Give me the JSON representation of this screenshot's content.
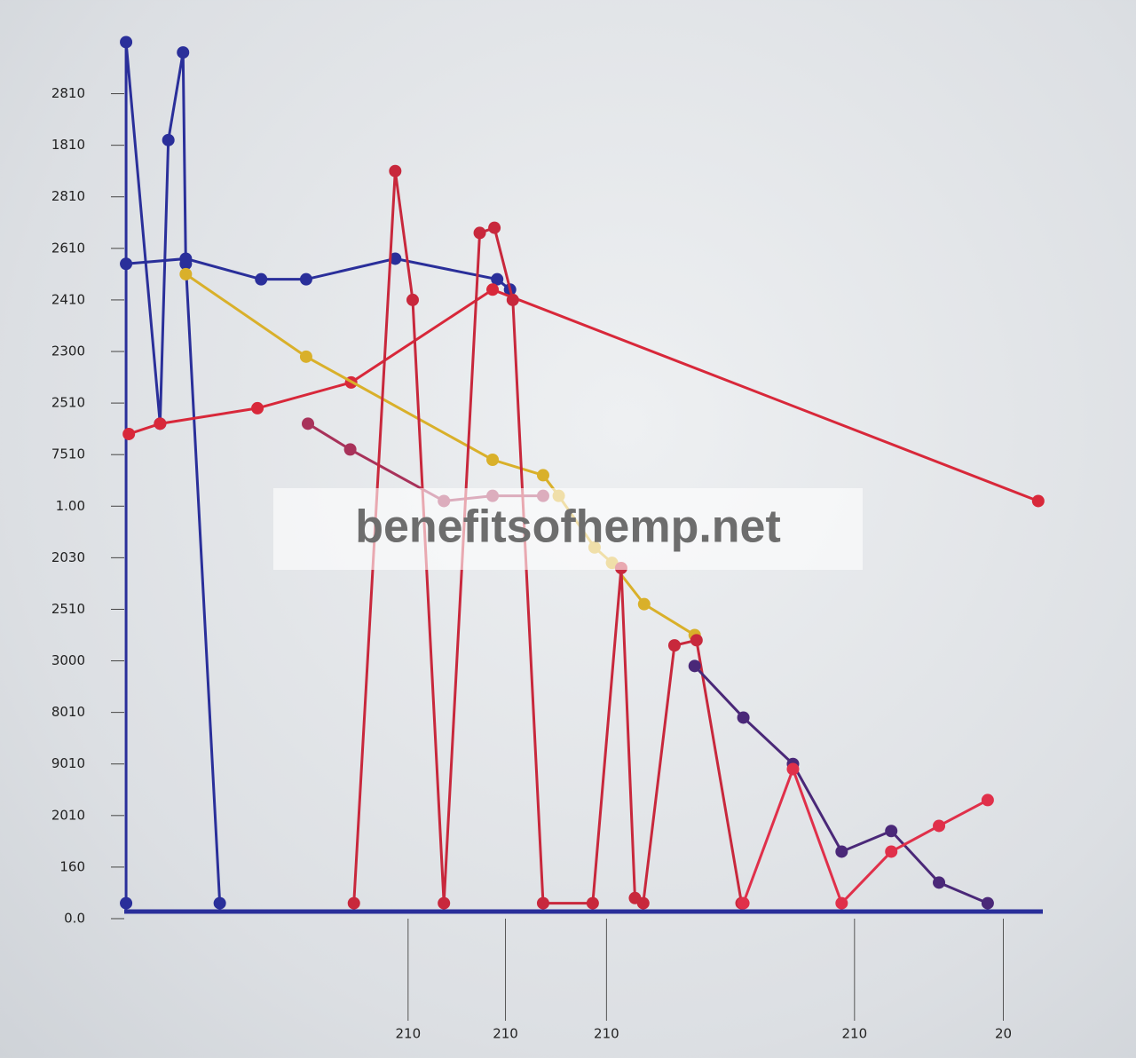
{
  "chart_data": {
    "type": "line",
    "watermark": "benefitsofhemp.net",
    "xlim": [
      0,
      100
    ],
    "ylim": [
      0,
      17.8
    ],
    "yticks": [
      {
        "value": 0,
        "label": "0.0"
      },
      {
        "value": 1,
        "label": "160"
      },
      {
        "value": 2,
        "label": "2010"
      },
      {
        "value": 3,
        "label": "9010"
      },
      {
        "value": 4,
        "label": "8010"
      },
      {
        "value": 5,
        "label": "3000"
      },
      {
        "value": 6,
        "label": "2510"
      },
      {
        "value": 7,
        "label": "2030"
      },
      {
        "value": 8,
        "label": "1.00"
      },
      {
        "value": 9,
        "label": "7510"
      },
      {
        "value": 10,
        "label": "2510"
      },
      {
        "value": 11,
        "label": "2300"
      },
      {
        "value": 12,
        "label": "2410"
      },
      {
        "value": 13,
        "label": "2610"
      },
      {
        "value": 14,
        "label": "2810"
      },
      {
        "value": 15,
        "label": "1810"
      },
      {
        "value": 16,
        "label": "2810"
      }
    ],
    "xticks": [
      {
        "value": 30.9,
        "label": "210"
      },
      {
        "value": 41.5,
        "label": "210"
      },
      {
        "value": 52.5,
        "label": "210"
      },
      {
        "value": 79.5,
        "label": "210"
      },
      {
        "value": 95.7,
        "label": "20"
      }
    ],
    "series": [
      {
        "color": "#2a2f9a",
        "x": [
          0.2,
          0.2,
          3.9,
          4.8,
          6.4,
          6.7,
          10.4
        ],
        "values": [
          0.3,
          17,
          9.6,
          15.1,
          16.8,
          12.7,
          0.3
        ]
      },
      {
        "color": "#2a2f9a",
        "x": [
          0.2,
          6.7,
          14.9,
          19.8,
          29.5,
          40.6,
          42
        ],
        "values": [
          12.7,
          12.8,
          12.4,
          12.4,
          12.8,
          12.4,
          12.2
        ]
      },
      {
        "color": "#d8283a",
        "x": [
          0.5,
          3.9,
          14.5,
          24.7,
          40.1,
          99.5
        ],
        "values": [
          9.4,
          9.6,
          9.9,
          10.4,
          12.2,
          8.1
        ]
      },
      {
        "color": "#d9b02a",
        "x": [
          6.7,
          19.8,
          40.1,
          45.6,
          47.3,
          51.2,
          53.1,
          56.6,
          62.1
        ],
        "values": [
          12.5,
          10.9,
          8.9,
          8.6,
          8.2,
          7.2,
          6.9,
          6.1,
          5.5
        ]
      },
      {
        "color": "#a8325a",
        "x": [
          20,
          24.6,
          34.8,
          40.1,
          45.6
        ],
        "values": [
          9.6,
          9.1,
          8.1,
          8.2,
          8.2
        ]
      },
      {
        "color": "#c8283c",
        "x": [
          25,
          29.5,
          31.4,
          34.8,
          38.7,
          40.3,
          42.3,
          45.6,
          51,
          54.1,
          55.6,
          56.5,
          59.9,
          62.3,
          67.2
        ],
        "values": [
          0.3,
          14.5,
          12,
          0.3,
          13.3,
          13.4,
          12,
          0.3,
          0.3,
          6.8,
          0.4,
          0.3,
          5.3,
          5.4,
          0.3
        ]
      },
      {
        "color": "#4a2878",
        "x": [
          62.1,
          67.4,
          72.8,
          78.1,
          83.5,
          88.7,
          94
        ],
        "values": [
          4.9,
          3.9,
          3.0,
          1.3,
          1.7,
          0.7,
          0.3
        ]
      },
      {
        "color": "#e0304a",
        "x": [
          67.4,
          72.8,
          78.1,
          83.5,
          88.7,
          94
        ],
        "values": [
          0.3,
          2.9,
          0.3,
          1.3,
          1.8,
          2.3
        ]
      }
    ]
  }
}
